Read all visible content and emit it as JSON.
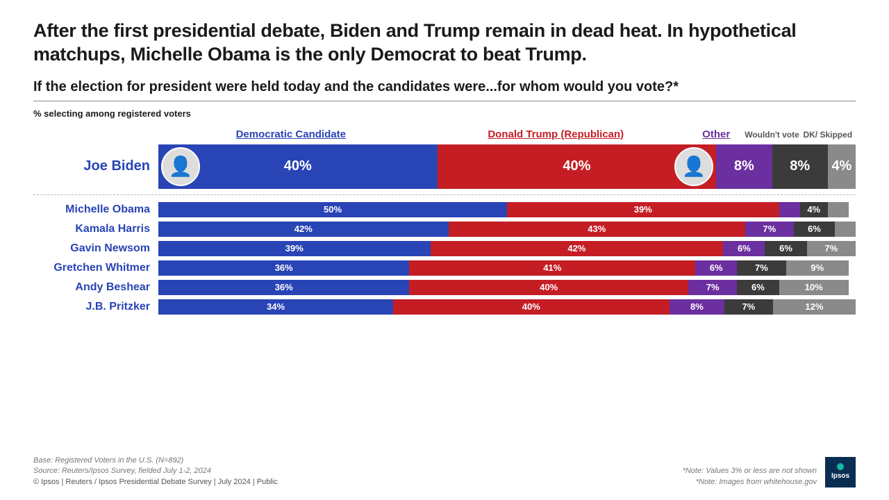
{
  "title": "After the first presidential debate, Biden and Trump remain in dead heat. In hypothetical matchups, Michelle Obama is the only Democrat to beat Trump.",
  "subtitle": "If the election for president were held today and the candidates were...for whom would you vote?*",
  "pct_label": "% selecting among registered voters",
  "legend": {
    "dem": "Democratic Candidate",
    "rep": "Donald Trump (Republican)",
    "other": "Other",
    "wouldnt": "Wouldn't vote",
    "dk": "DK/ Skipped"
  },
  "colors": {
    "dem": "#2944b5",
    "rep": "#c41e24",
    "other": "#6b2fa0",
    "wouldnt": "#3b3b3b",
    "dk": "#8a8a8a",
    "name": "#2944b5",
    "legend_dem": "#2944b5",
    "legend_rep": "#c41e24",
    "legend_other": "#6b2fa0",
    "legend_gray": "#555555"
  },
  "main_row": {
    "name": "Joe Biden",
    "dem": 40,
    "rep": 40,
    "other": 8,
    "wouldnt": 8,
    "dk": 4,
    "dem_label": "40%",
    "rep_label": "40%",
    "other_label": "8%",
    "wouldnt_label": "8%",
    "dk_label": "4%"
  },
  "rows": [
    {
      "name": "Michelle Obama",
      "dem": 50,
      "rep": 39,
      "other": 3,
      "wouldnt": 4,
      "dk": 3,
      "dem_label": "50%",
      "rep_label": "39%",
      "other_label": "",
      "wouldnt_label": "4%",
      "dk_label": ""
    },
    {
      "name": "Kamala Harris",
      "dem": 42,
      "rep": 43,
      "other": 7,
      "wouldnt": 6,
      "dk": 3,
      "dem_label": "42%",
      "rep_label": "43%",
      "other_label": "7%",
      "wouldnt_label": "6%",
      "dk_label": ""
    },
    {
      "name": "Gavin Newsom",
      "dem": 39,
      "rep": 42,
      "other": 6,
      "wouldnt": 6,
      "dk": 7,
      "dem_label": "39%",
      "rep_label": "42%",
      "other_label": "6%",
      "wouldnt_label": "6%",
      "dk_label": "7%"
    },
    {
      "name": "Gretchen Whitmer",
      "dem": 36,
      "rep": 41,
      "other": 6,
      "wouldnt": 7,
      "dk": 9,
      "dem_label": "36%",
      "rep_label": "41%",
      "other_label": "6%",
      "wouldnt_label": "7%",
      "dk_label": "9%"
    },
    {
      "name": "Andy Beshear",
      "dem": 36,
      "rep": 40,
      "other": 7,
      "wouldnt": 6,
      "dk": 10,
      "dem_label": "36%",
      "rep_label": "40%",
      "other_label": "7%",
      "wouldnt_label": "6%",
      "dk_label": "10%"
    },
    {
      "name": "J.B. Pritzker",
      "dem": 34,
      "rep": 40,
      "other": 8,
      "wouldnt": 7,
      "dk": 12,
      "dem_label": "34%",
      "rep_label": "40%",
      "other_label": "8%",
      "wouldnt_label": "7%",
      "dk_label": "12%"
    }
  ],
  "legend_widths": {
    "dem": 38,
    "rep": 38,
    "other": 8,
    "wouldnt": 8,
    "dk": 8
  },
  "footer": {
    "base": "Base: Registered Voters in the U.S. (N=892)",
    "source": "Source: Reuters/Ipsos Survey, fielded July 1-2, 2024",
    "copyright": "© Ipsos | Reuters / Ipsos Presidential Debate Survey | July 2024 | Public",
    "note1": "*Note: Values 3% or less are not shown",
    "note2": "*Note: Images from whitehouse.gov",
    "logo": "Ipsos"
  }
}
